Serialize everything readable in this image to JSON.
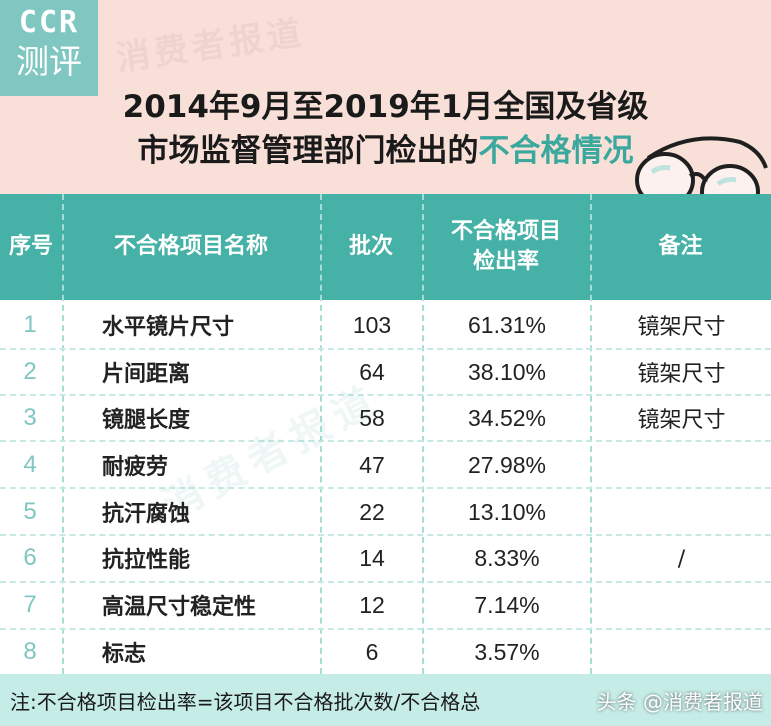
{
  "logo": {
    "line1": "CCR",
    "line2": "测评"
  },
  "watermark": "消费者报道",
  "title": {
    "line1": "2014年9月至2019年1月全国及省级",
    "line2_prefix": "市场监督管理部门检出的",
    "line2_highlight": "不合格情况"
  },
  "table": {
    "headers": {
      "index": "序号",
      "name": "不合格项目名称",
      "count": "批次",
      "rate_line1": "不合格项目",
      "rate_line2": "检出率",
      "note": "备注"
    },
    "rows": [
      {
        "index": "1",
        "name": "水平镜片尺寸",
        "count": "103",
        "rate": "61.31%",
        "note": "镜架尺寸"
      },
      {
        "index": "2",
        "name": "片间距离",
        "count": "64",
        "rate": "38.10%",
        "note": "镜架尺寸"
      },
      {
        "index": "3",
        "name": "镜腿长度",
        "count": "58",
        "rate": "34.52%",
        "note": "镜架尺寸"
      },
      {
        "index": "4",
        "name": "耐疲劳",
        "count": "47",
        "rate": "27.98%",
        "note": ""
      },
      {
        "index": "5",
        "name": "抗汗腐蚀",
        "count": "22",
        "rate": "13.10%",
        "note": ""
      },
      {
        "index": "6",
        "name": "抗拉性能",
        "count": "14",
        "rate": "8.33%",
        "note": ""
      },
      {
        "index": "7",
        "name": "高温尺寸稳定性",
        "count": "12",
        "rate": "7.14%",
        "note": ""
      },
      {
        "index": "8",
        "name": "标志",
        "count": "6",
        "rate": "3.57%",
        "note": ""
      }
    ],
    "merged_note": "/"
  },
  "footer": {
    "note": "注:不合格项目检出率=该项目不合格批次数/不合格总",
    "source": "头条 @消费者报道"
  },
  "colors": {
    "header_bg": "#f8e0d9",
    "teal": "#46b1a6",
    "logo_bg": "#7fc7c0",
    "highlight": "#3aa89d",
    "footer_bg": "#c6ece7"
  },
  "icons": [
    "glasses-illustration"
  ]
}
